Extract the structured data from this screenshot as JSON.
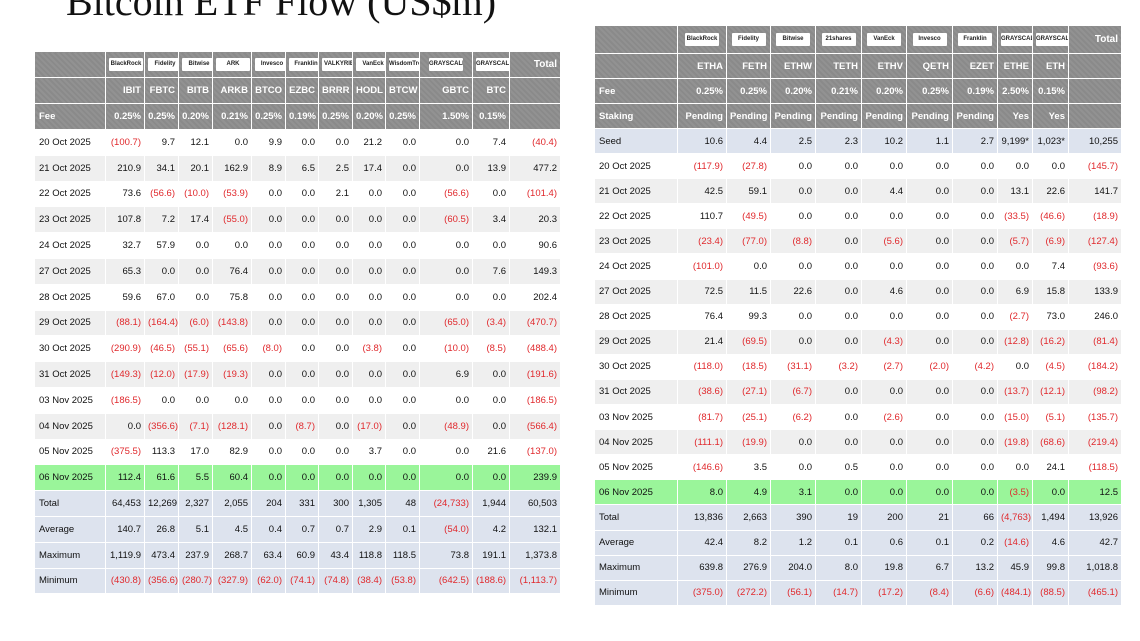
{
  "page_title": "Bitcoin ETF Flow (US$m)",
  "left": {
    "logos": [
      "BlackRock",
      "Fidelity",
      "Bitwise",
      "ARK",
      "Invesco",
      "Franklin",
      "VALKYRIE",
      "VanEck",
      "WisdomTree",
      "GRAYSCALE",
      "GRAYSCALE"
    ],
    "total_label": "Total",
    "tickers": [
      "IBIT",
      "FBTC",
      "BITB",
      "ARKB",
      "BTCO",
      "EZBC",
      "BRRR",
      "HODL",
      "BTCW",
      "GBTC",
      "BTC"
    ],
    "fee_label": "Fee",
    "fees": [
      "0.25%",
      "0.25%",
      "0.20%",
      "0.21%",
      "0.25%",
      "0.19%",
      "0.25%",
      "0.20%",
      "0.25%",
      "1.50%",
      "0.15%"
    ],
    "rows": [
      {
        "date": "20 Oct 2025",
        "vals": [
          "(100.7)",
          "9.7",
          "12.1",
          "0.0",
          "9.9",
          "0.0",
          "0.0",
          "21.2",
          "0.0",
          "0.0",
          "7.4",
          "(40.4)"
        ]
      },
      {
        "date": "21 Oct 2025",
        "vals": [
          "210.9",
          "34.1",
          "20.1",
          "162.9",
          "8.9",
          "6.5",
          "2.5",
          "17.4",
          "0.0",
          "0.0",
          "13.9",
          "477.2"
        ]
      },
      {
        "date": "22 Oct 2025",
        "vals": [
          "73.6",
          "(56.6)",
          "(10.0)",
          "(53.9)",
          "0.0",
          "0.0",
          "2.1",
          "0.0",
          "0.0",
          "(56.6)",
          "0.0",
          "(101.4)"
        ]
      },
      {
        "date": "23 Oct 2025",
        "vals": [
          "107.8",
          "7.2",
          "17.4",
          "(55.0)",
          "0.0",
          "0.0",
          "0.0",
          "0.0",
          "0.0",
          "(60.5)",
          "3.4",
          "20.3"
        ]
      },
      {
        "date": "24 Oct 2025",
        "vals": [
          "32.7",
          "57.9",
          "0.0",
          "0.0",
          "0.0",
          "0.0",
          "0.0",
          "0.0",
          "0.0",
          "0.0",
          "0.0",
          "90.6"
        ]
      },
      {
        "date": "27 Oct 2025",
        "vals": [
          "65.3",
          "0.0",
          "0.0",
          "76.4",
          "0.0",
          "0.0",
          "0.0",
          "0.0",
          "0.0",
          "0.0",
          "7.6",
          "149.3"
        ]
      },
      {
        "date": "28 Oct 2025",
        "vals": [
          "59.6",
          "67.0",
          "0.0",
          "75.8",
          "0.0",
          "0.0",
          "0.0",
          "0.0",
          "0.0",
          "0.0",
          "0.0",
          "202.4"
        ]
      },
      {
        "date": "29 Oct 2025",
        "vals": [
          "(88.1)",
          "(164.4)",
          "(6.0)",
          "(143.8)",
          "0.0",
          "0.0",
          "0.0",
          "0.0",
          "0.0",
          "(65.0)",
          "(3.4)",
          "(470.7)"
        ]
      },
      {
        "date": "30 Oct 2025",
        "vals": [
          "(290.9)",
          "(46.5)",
          "(55.1)",
          "(65.6)",
          "(8.0)",
          "0.0",
          "0.0",
          "(3.8)",
          "0.0",
          "(10.0)",
          "(8.5)",
          "(488.4)"
        ]
      },
      {
        "date": "31 Oct 2025",
        "vals": [
          "(149.3)",
          "(12.0)",
          "(17.9)",
          "(19.3)",
          "0.0",
          "0.0",
          "0.0",
          "0.0",
          "0.0",
          "6.9",
          "0.0",
          "(191.6)"
        ]
      },
      {
        "date": "03 Nov 2025",
        "vals": [
          "(186.5)",
          "0.0",
          "0.0",
          "0.0",
          "0.0",
          "0.0",
          "0.0",
          "0.0",
          "0.0",
          "0.0",
          "0.0",
          "(186.5)"
        ]
      },
      {
        "date": "04 Nov 2025",
        "vals": [
          "0.0",
          "(356.6)",
          "(7.1)",
          "(128.1)",
          "0.0",
          "(8.7)",
          "0.0",
          "(17.0)",
          "0.0",
          "(48.9)",
          "0.0",
          "(566.4)"
        ]
      },
      {
        "date": "05 Nov 2025",
        "vals": [
          "(375.5)",
          "113.3",
          "17.0",
          "82.9",
          "0.0",
          "0.0",
          "0.0",
          "3.7",
          "0.0",
          "0.0",
          "21.6",
          "(137.0)"
        ]
      },
      {
        "date": "06 Nov 2025",
        "vals": [
          "112.4",
          "61.6",
          "5.5",
          "60.4",
          "0.0",
          "0.0",
          "0.0",
          "0.0",
          "0.0",
          "0.0",
          "0.0",
          "239.9"
        ],
        "highlight": true
      }
    ],
    "stats": [
      {
        "label": "Total",
        "vals": [
          "64,453",
          "12,269",
          "2,327",
          "2,055",
          "204",
          "331",
          "300",
          "1,305",
          "48",
          "(24,733)",
          "1,944",
          "60,503"
        ]
      },
      {
        "label": "Average",
        "vals": [
          "140.7",
          "26.8",
          "5.1",
          "4.5",
          "0.4",
          "0.7",
          "0.7",
          "2.9",
          "0.1",
          "(54.0)",
          "4.2",
          "132.1"
        ]
      },
      {
        "label": "Maximum",
        "vals": [
          "1,119.9",
          "473.4",
          "237.9",
          "268.7",
          "63.4",
          "60.9",
          "43.4",
          "118.8",
          "118.5",
          "73.8",
          "191.1",
          "1,373.8"
        ]
      },
      {
        "label": "Minimum",
        "vals": [
          "(430.8)",
          "(356.6)",
          "(280.7)",
          "(327.9)",
          "(62.0)",
          "(74.1)",
          "(74.8)",
          "(38.4)",
          "(53.8)",
          "(642.5)",
          "(188.6)",
          "(1,113.7)"
        ]
      }
    ]
  },
  "right": {
    "logos": [
      "BlackRock",
      "Fidelity",
      "Bitwise",
      "21shares",
      "VanEck",
      "Invesco",
      "Franklin",
      "GRAYSCALE",
      "GRAYSCALE"
    ],
    "total_label": "Total",
    "tickers": [
      "ETHA",
      "FETH",
      "ETHW",
      "TETH",
      "ETHV",
      "QETH",
      "EZET",
      "ETHE",
      "ETH"
    ],
    "fee_label": "Fee",
    "fees": [
      "0.25%",
      "0.25%",
      "0.20%",
      "0.21%",
      "0.20%",
      "0.25%",
      "0.19%",
      "2.50%",
      "0.15%"
    ],
    "staking_label": "Staking",
    "staking": [
      "Pending",
      "Pending",
      "Pending",
      "Pending",
      "Pending",
      "Pending",
      "Pending",
      "Yes",
      "Yes"
    ],
    "seed": {
      "label": "Seed",
      "vals": [
        "10.6",
        "4.4",
        "2.5",
        "2.3",
        "10.2",
        "1.1",
        "2.7",
        "9,199*",
        "1,023*",
        "10,255"
      ]
    },
    "rows": [
      {
        "date": "20 Oct 2025",
        "vals": [
          "(117.9)",
          "(27.8)",
          "0.0",
          "0.0",
          "0.0",
          "0.0",
          "0.0",
          "0.0",
          "0.0",
          "(145.7)"
        ]
      },
      {
        "date": "21 Oct 2025",
        "vals": [
          "42.5",
          "59.1",
          "0.0",
          "0.0",
          "4.4",
          "0.0",
          "0.0",
          "13.1",
          "22.6",
          "141.7"
        ]
      },
      {
        "date": "22 Oct 2025",
        "vals": [
          "110.7",
          "(49.5)",
          "0.0",
          "0.0",
          "0.0",
          "0.0",
          "0.0",
          "(33.5)",
          "(46.6)",
          "(18.9)"
        ]
      },
      {
        "date": "23 Oct 2025",
        "vals": [
          "(23.4)",
          "(77.0)",
          "(8.8)",
          "0.0",
          "(5.6)",
          "0.0",
          "0.0",
          "(5.7)",
          "(6.9)",
          "(127.4)"
        ]
      },
      {
        "date": "24 Oct 2025",
        "vals": [
          "(101.0)",
          "0.0",
          "0.0",
          "0.0",
          "0.0",
          "0.0",
          "0.0",
          "0.0",
          "7.4",
          "(93.6)"
        ]
      },
      {
        "date": "27 Oct 2025",
        "vals": [
          "72.5",
          "11.5",
          "22.6",
          "0.0",
          "4.6",
          "0.0",
          "0.0",
          "6.9",
          "15.8",
          "133.9"
        ]
      },
      {
        "date": "28 Oct 2025",
        "vals": [
          "76.4",
          "99.3",
          "0.0",
          "0.0",
          "0.0",
          "0.0",
          "0.0",
          "(2.7)",
          "73.0",
          "246.0"
        ]
      },
      {
        "date": "29 Oct 2025",
        "vals": [
          "21.4",
          "(69.5)",
          "0.0",
          "0.0",
          "(4.3)",
          "0.0",
          "0.0",
          "(12.8)",
          "(16.2)",
          "(81.4)"
        ]
      },
      {
        "date": "30 Oct 2025",
        "vals": [
          "(118.0)",
          "(18.5)",
          "(31.1)",
          "(3.2)",
          "(2.7)",
          "(2.0)",
          "(4.2)",
          "0.0",
          "(4.5)",
          "(184.2)"
        ]
      },
      {
        "date": "31 Oct 2025",
        "vals": [
          "(38.6)",
          "(27.1)",
          "(6.7)",
          "0.0",
          "0.0",
          "0.0",
          "0.0",
          "(13.7)",
          "(12.1)",
          "(98.2)"
        ]
      },
      {
        "date": "03 Nov 2025",
        "vals": [
          "(81.7)",
          "(25.1)",
          "(6.2)",
          "0.0",
          "(2.6)",
          "0.0",
          "0.0",
          "(15.0)",
          "(5.1)",
          "(135.7)"
        ]
      },
      {
        "date": "04 Nov 2025",
        "vals": [
          "(111.1)",
          "(19.9)",
          "0.0",
          "0.0",
          "0.0",
          "0.0",
          "0.0",
          "(19.8)",
          "(68.6)",
          "(219.4)"
        ]
      },
      {
        "date": "05 Nov 2025",
        "vals": [
          "(146.6)",
          "3.5",
          "0.0",
          "0.5",
          "0.0",
          "0.0",
          "0.0",
          "0.0",
          "24.1",
          "(118.5)"
        ]
      },
      {
        "date": "06 Nov 2025",
        "vals": [
          "8.0",
          "4.9",
          "3.1",
          "0.0",
          "0.0",
          "0.0",
          "0.0",
          "(3.5)",
          "0.0",
          "12.5"
        ],
        "highlight": true
      }
    ],
    "stats": [
      {
        "label": "Total",
        "vals": [
          "13,836",
          "2,663",
          "390",
          "19",
          "200",
          "21",
          "66",
          "(4,763)",
          "1,494",
          "13,926"
        ]
      },
      {
        "label": "Average",
        "vals": [
          "42.4",
          "8.2",
          "1.2",
          "0.1",
          "0.6",
          "0.1",
          "0.2",
          "(14.6)",
          "4.6",
          "42.7"
        ]
      },
      {
        "label": "Maximum",
        "vals": [
          "639.8",
          "276.9",
          "204.0",
          "8.0",
          "19.8",
          "6.7",
          "13.2",
          "45.9",
          "99.8",
          "1,018.8"
        ]
      },
      {
        "label": "Minimum",
        "vals": [
          "(375.0)",
          "(272.2)",
          "(56.1)",
          "(14.7)",
          "(17.2)",
          "(8.4)",
          "(6.6)",
          "(484.1)",
          "(88.5)",
          "(465.1)"
        ]
      }
    ]
  }
}
